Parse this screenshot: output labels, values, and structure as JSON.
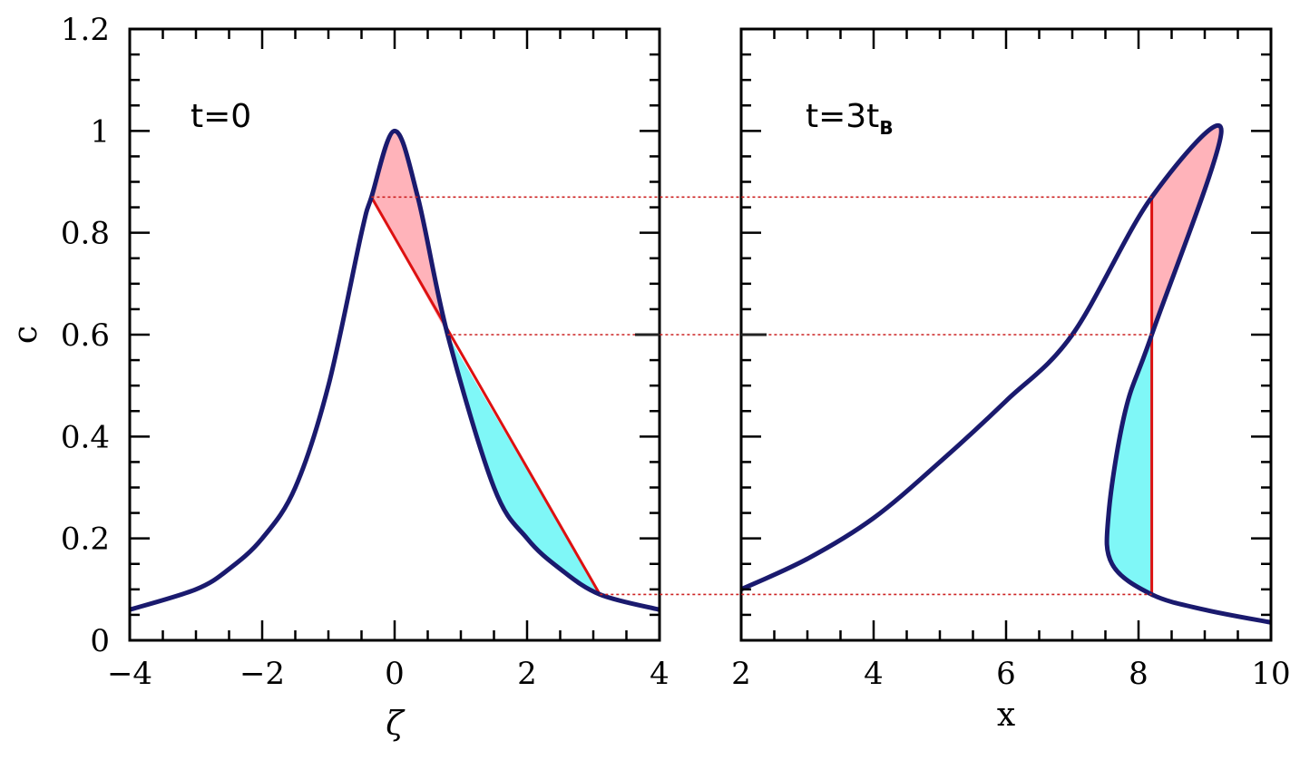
{
  "chart_data": [
    {
      "type": "line",
      "panel": "left",
      "annotation": "t=0",
      "xlabel": "ζ",
      "ylabel": "c",
      "xlim": [
        -4,
        4
      ],
      "ylim": [
        0,
        1.2
      ],
      "xticks": [
        -4,
        -2,
        0,
        2,
        4
      ],
      "xtick_labels": [
        "−4",
        "−2",
        "0",
        "2",
        "4"
      ],
      "yticks": [
        0,
        0.2,
        0.4,
        0.6,
        0.8,
        1,
        1.2
      ],
      "ytick_labels": [
        "0",
        "0.2",
        "0.4",
        "0.6",
        "0.8",
        "1",
        "1.2"
      ],
      "curve": {
        "x": [
          -4,
          -3,
          -2.5,
          -2,
          -1.5,
          -1,
          -0.5,
          -0.35,
          0,
          0.35,
          0.8,
          1.5,
          2,
          2.5,
          3.1,
          4
        ],
        "y": [
          0.06,
          0.1,
          0.14,
          0.2,
          0.3,
          0.5,
          0.8,
          0.87,
          1.0,
          0.87,
          0.6,
          0.3,
          0.2,
          0.14,
          0.09,
          0.06
        ]
      },
      "chord": {
        "x": [
          -0.35,
          3.1
        ],
        "y": [
          0.87,
          0.09
        ]
      },
      "lobe_upper": {
        "x": [
          -0.35,
          0,
          0.35,
          0.8
        ],
        "y": [
          0.87,
          1.0,
          0.87,
          0.6
        ]
      },
      "lobe_lower": {
        "x": [
          0.8,
          1.5,
          2,
          2.5,
          3.1
        ],
        "y": [
          0.6,
          0.3,
          0.2,
          0.14,
          0.09
        ]
      }
    },
    {
      "type": "line",
      "panel": "right",
      "annotation": "t=3t",
      "annotation_sub": "B",
      "xlabel": "x",
      "ylabel": "",
      "xlim": [
        2,
        10
      ],
      "ylim": [
        0,
        1.2
      ],
      "xticks": [
        2,
        4,
        6,
        8,
        10
      ],
      "xtick_labels": [
        "2",
        "4",
        "6",
        "8",
        "10"
      ],
      "curve": {
        "x": [
          2,
          3,
          4,
          5,
          6,
          7,
          8.2,
          9.25,
          8.2,
          7.8,
          7.55,
          7.6,
          8.2,
          9,
          10
        ],
        "y": [
          0.1,
          0.16,
          0.24,
          0.35,
          0.47,
          0.6,
          0.87,
          1.0,
          0.6,
          0.45,
          0.25,
          0.15,
          0.09,
          0.06,
          0.035
        ]
      },
      "shock_x": 8.2,
      "lobe_upper": {
        "x": [
          8.2,
          9.25,
          8.2
        ],
        "y": [
          0.87,
          1.0,
          0.6
        ]
      },
      "lobe_lower": {
        "x": [
          8.2,
          7.8,
          7.55,
          7.6,
          8.2
        ],
        "y": [
          0.6,
          0.45,
          0.25,
          0.15,
          0.09
        ]
      }
    }
  ],
  "connector_levels": [
    0.87,
    0.6,
    0.09
  ],
  "colors": {
    "curve": "#1a1a6e",
    "chord": "#dd1111",
    "fill_upper": "#ffb3ba",
    "fill_lower": "#7ff7f7",
    "connector": "#cc2222"
  }
}
